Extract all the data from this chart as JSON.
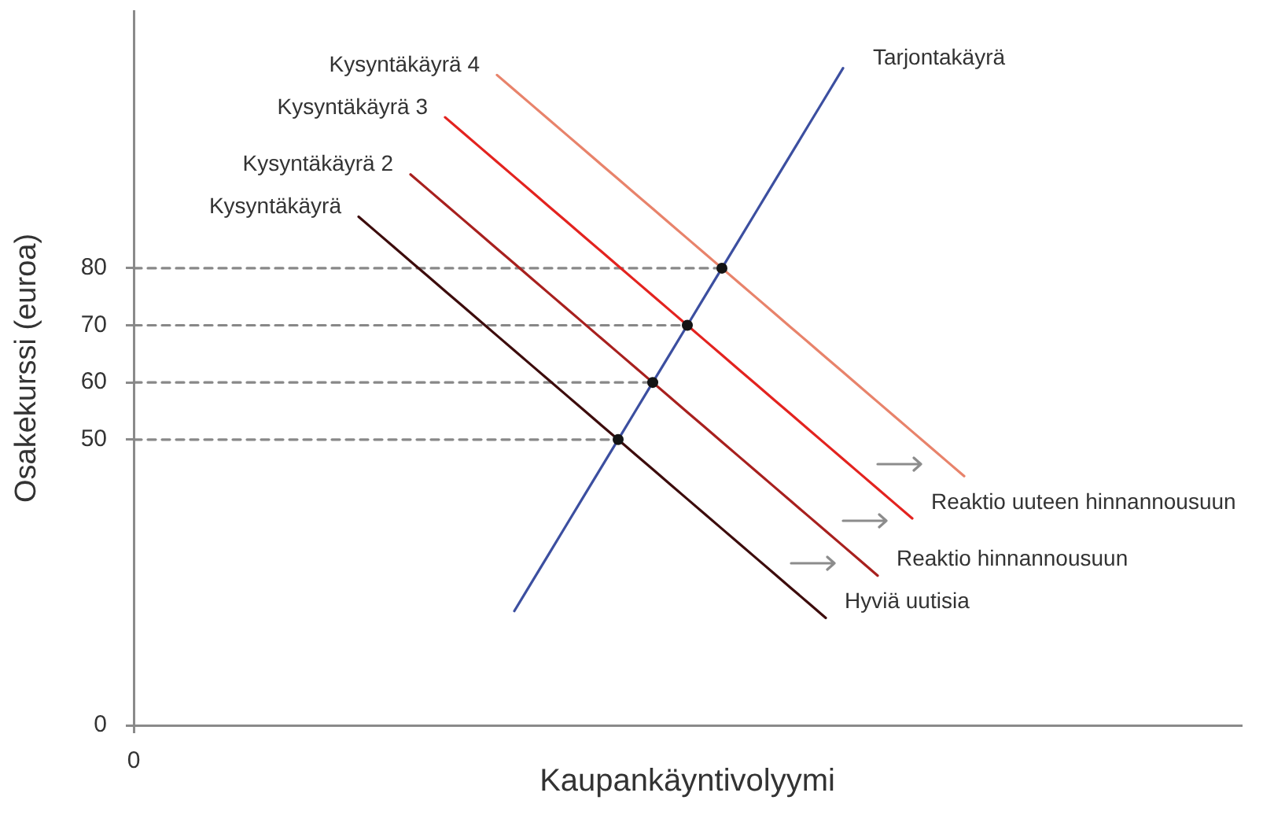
{
  "chart_data": {
    "type": "line",
    "xlabel": "Kaupankäyntivolyymi",
    "ylabel": "Osakekurssi (euroa)",
    "categories": [
      "0",
      null,
      null,
      null,
      null,
      null,
      null,
      null,
      null,
      null,
      null,
      null,
      null,
      null,
      null,
      null,
      null,
      null,
      null,
      null,
      null,
      null,
      null,
      null,
      null,
      null,
      null,
      null,
      null,
      null,
      null,
      null,
      null,
      null,
      null,
      null,
      null,
      null,
      null,
      null,
      null,
      null,
      null,
      null,
      null,
      null,
      null,
      null,
      null,
      null,
      null,
      null,
      null,
      null,
      null,
      null,
      null,
      null,
      null,
      null,
      null,
      null,
      null,
      null,
      null
    ],
    "ylim": [
      0,
      125
    ],
    "yticks": [
      0,
      50,
      60,
      70,
      80
    ],
    "grid": false,
    "legend": false,
    "marker": "none",
    "line_style": "solid",
    "series": [
      {
        "name": "Tarjontakäyrä",
        "color": "#3c4fa0",
        "values": [
          null,
          null,
          null,
          null,
          null,
          null,
          null,
          null,
          null,
          null,
          null,
          null,
          null,
          null,
          null,
          null,
          null,
          null,
          null,
          null,
          null,
          null,
          20,
          25,
          30,
          35,
          40,
          45,
          50,
          55,
          60,
          65,
          70,
          75,
          80,
          85,
          90,
          95,
          100,
          105,
          110,
          115,
          null,
          null,
          null,
          null,
          null,
          null,
          null,
          null,
          null,
          null,
          null,
          null,
          null,
          null,
          null,
          null,
          null,
          null,
          null,
          null,
          null,
          null,
          null
        ]
      },
      {
        "name": "Kysyntäkäyrä",
        "color": "#3d0c0c",
        "values": [
          null,
          null,
          null,
          null,
          null,
          null,
          null,
          null,
          null,
          null,
          null,
          null,
          null,
          89,
          86.4,
          83.8,
          81.2,
          78.6,
          76,
          73.4,
          70.8,
          68.2,
          65.6,
          63,
          60.4,
          57.8,
          55.2,
          52.6,
          50,
          47.4,
          44.8,
          42.2,
          39.6,
          37,
          34.4,
          31.8,
          29.2,
          26.6,
          24,
          21.4,
          18.8,
          null,
          null,
          null,
          null,
          null,
          null,
          null,
          null,
          null,
          null,
          null,
          null,
          null,
          null,
          null,
          null,
          null,
          null,
          null,
          null,
          null,
          null,
          null,
          null
        ]
      },
      {
        "name": "Kysyntäkäyrä 2",
        "color": "#a8201e",
        "values": [
          null,
          null,
          null,
          null,
          null,
          null,
          null,
          null,
          null,
          null,
          null,
          null,
          null,
          null,
          null,
          null,
          96.4,
          93.8,
          91.2,
          88.6,
          86,
          83.4,
          80.8,
          78.2,
          75.6,
          73,
          70.4,
          67.8,
          65.2,
          62.6,
          60,
          57.4,
          54.8,
          52.2,
          49.6,
          47,
          44.4,
          41.8,
          39.2,
          36.6,
          34,
          31.4,
          28.8,
          26.2,
          null,
          null,
          null,
          null,
          null,
          null,
          null,
          null,
          null,
          null,
          null,
          null,
          null,
          null,
          null,
          null,
          null,
          null,
          null,
          null,
          null
        ]
      },
      {
        "name": "Kysyntäkäyrä 3",
        "color": "#e3231f",
        "values": [
          null,
          null,
          null,
          null,
          null,
          null,
          null,
          null,
          null,
          null,
          null,
          null,
          null,
          null,
          null,
          null,
          null,
          null,
          106.4,
          103.8,
          101.2,
          98.6,
          96,
          93.4,
          90.8,
          88.2,
          85.6,
          83,
          80.4,
          77.8,
          75.2,
          72.6,
          70,
          67.4,
          64.8,
          62.2,
          59.6,
          57,
          54.4,
          51.8,
          49.2,
          46.6,
          44,
          41.4,
          38.8,
          36.2,
          null,
          null,
          null,
          null,
          null,
          null,
          null,
          null,
          null,
          null,
          null,
          null,
          null,
          null,
          null,
          null,
          null,
          null,
          null
        ]
      },
      {
        "name": "Kysyntäkäyrä 4",
        "color": "#e8836b",
        "values": [
          null,
          null,
          null,
          null,
          null,
          null,
          null,
          null,
          null,
          null,
          null,
          null,
          null,
          null,
          null,
          null,
          null,
          null,
          null,
          null,
          null,
          113.8,
          111.2,
          108.6,
          106,
          103.4,
          100.8,
          98.2,
          95.6,
          93,
          90.4,
          87.8,
          85.2,
          82.6,
          80,
          77.4,
          74.8,
          72.2,
          69.6,
          67,
          64.4,
          61.8,
          59.2,
          56.6,
          54,
          51.4,
          48.8,
          46.2,
          43.6,
          null,
          null,
          null,
          null,
          null,
          null,
          null,
          null,
          null,
          null,
          null,
          null,
          null,
          null,
          null,
          null
        ]
      },
      {
        "color": "#888888",
        "line_style": "dashed",
        "values": [
          50,
          50,
          50,
          50,
          50,
          50,
          50,
          50,
          50,
          50,
          50,
          50,
          50,
          50,
          50,
          50,
          50,
          50,
          50,
          50,
          50,
          50,
          50,
          50,
          50,
          50,
          50,
          50,
          50,
          null,
          null,
          null,
          null,
          null,
          null,
          null,
          null,
          null,
          null,
          null,
          null,
          null,
          null,
          null,
          null,
          null,
          null,
          null,
          null,
          null,
          null,
          null,
          null,
          null,
          null,
          null,
          null,
          null,
          null,
          null,
          null,
          null,
          null,
          null,
          null
        ]
      },
      {
        "color": "#888888",
        "line_style": "dashed",
        "values": [
          60,
          60,
          60,
          60,
          60,
          60,
          60,
          60,
          60,
          60,
          60,
          60,
          60,
          60,
          60,
          60,
          60,
          60,
          60,
          60,
          60,
          60,
          60,
          60,
          60,
          60,
          60,
          60,
          60,
          60,
          60,
          null,
          null,
          null,
          null,
          null,
          null,
          null,
          null,
          null,
          null,
          null,
          null,
          null,
          null,
          null,
          null,
          null,
          null,
          null,
          null,
          null,
          null,
          null,
          null,
          null,
          null,
          null,
          null,
          null,
          null,
          null,
          null,
          null,
          null
        ]
      },
      {
        "color": "#888888",
        "line_style": "dashed",
        "values": [
          70,
          70,
          70,
          70,
          70,
          70,
          70,
          70,
          70,
          70,
          70,
          70,
          70,
          70,
          70,
          70,
          70,
          70,
          70,
          70,
          70,
          70,
          70,
          70,
          70,
          70,
          70,
          70,
          70,
          70,
          70,
          70,
          70,
          null,
          null,
          null,
          null,
          null,
          null,
          null,
          null,
          null,
          null,
          null,
          null,
          null,
          null,
          null,
          null,
          null,
          null,
          null,
          null,
          null,
          null,
          null,
          null,
          null,
          null,
          null,
          null,
          null,
          null,
          null,
          null
        ]
      },
      {
        "color": "#888888",
        "line_style": "dashed",
        "values": [
          80,
          80,
          80,
          80,
          80,
          80,
          80,
          80,
          80,
          80,
          80,
          80,
          80,
          80,
          80,
          80,
          80,
          80,
          80,
          80,
          80,
          80,
          80,
          80,
          80,
          80,
          80,
          80,
          80,
          80,
          80,
          80,
          80,
          80,
          80,
          null,
          null,
          null,
          null,
          null,
          null,
          null,
          null,
          null,
          null,
          null,
          null,
          null,
          null,
          null,
          null,
          null,
          null,
          null,
          null,
          null,
          null,
          null,
          null,
          null,
          null,
          null,
          null,
          null,
          null
        ]
      },
      {
        "type": "scatter",
        "marker": "circle",
        "color": "#141414",
        "values": [
          null,
          null,
          null,
          null,
          null,
          null,
          null,
          null,
          null,
          null,
          null,
          null,
          null,
          null,
          null,
          null,
          null,
          null,
          null,
          null,
          null,
          null,
          null,
          null,
          null,
          null,
          null,
          null,
          50,
          null,
          60,
          null,
          70,
          null,
          80,
          null,
          null,
          null,
          null,
          null,
          null,
          null,
          null,
          null,
          null,
          null,
          null,
          null,
          null,
          null,
          null,
          null,
          null,
          null,
          null,
          null,
          null,
          null,
          null,
          null,
          null,
          null,
          null,
          null,
          null
        ]
      }
    ],
    "annotations": [
      "Hyviä uutisia",
      "Reaktio hinnannousuun",
      "Reaktio uuteen hinnannousuun"
    ]
  }
}
